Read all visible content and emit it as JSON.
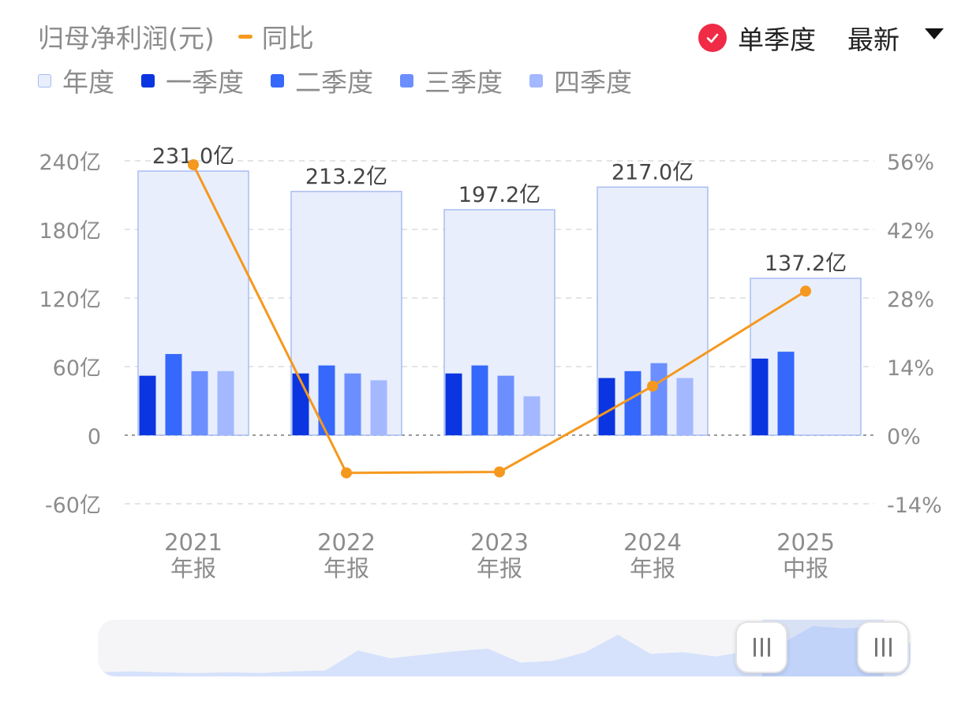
{
  "legend": {
    "title": "归母净利润(元)",
    "line_label": "同比",
    "bar_labels": [
      "年度",
      "一季度",
      "二季度",
      "三季度",
      "四季度"
    ]
  },
  "controls": {
    "single_quarter_label": "单季度",
    "sort_label": "最新"
  },
  "colors": {
    "annual_fill": "#e8eefc",
    "annual_stroke": "#a9bdf2",
    "q1": "#0a35e0",
    "q2": "#3568fb",
    "q3": "#6c8fff",
    "q4": "#a3b8ff",
    "line": "#f5981e",
    "check": "#f02b46",
    "grid": "#dcdcdc",
    "axis_text": "#8c8c8c"
  },
  "chart_data": {
    "type": "bar",
    "categories": [
      [
        "2021",
        "年报"
      ],
      [
        "2022",
        "年报"
      ],
      [
        "2023",
        "年报"
      ],
      [
        "2024",
        "年报"
      ],
      [
        "2025",
        "中报"
      ]
    ],
    "series": [
      {
        "name": "年度",
        "values": [
          231.0,
          213.2,
          197.2,
          217.0,
          137.2
        ]
      },
      {
        "name": "一季度",
        "values": [
          52,
          54,
          54,
          50,
          67
        ]
      },
      {
        "name": "二季度",
        "values": [
          71,
          61,
          61,
          56,
          73
        ]
      },
      {
        "name": "三季度",
        "values": [
          56,
          54,
          52,
          63,
          null
        ]
      },
      {
        "name": "四季度",
        "values": [
          56,
          48,
          34,
          50,
          null
        ]
      }
    ],
    "line_series": {
      "name": "同比",
      "values": [
        55.2,
        -7.7,
        -7.5,
        10.0,
        29.4
      ]
    },
    "data_labels": [
      "231.0亿",
      "213.2亿",
      "197.2亿",
      "217.0亿",
      "137.2亿"
    ],
    "y_left": {
      "ticks": [
        240,
        180,
        120,
        60,
        0,
        -60
      ],
      "labels": [
        "240亿",
        "180亿",
        "120亿",
        "60亿",
        "0",
        "-60亿"
      ],
      "range": [
        -60,
        240
      ]
    },
    "y_right": {
      "ticks": [
        56,
        42,
        28,
        14,
        0,
        -14
      ],
      "labels": [
        "56%",
        "42%",
        "28%",
        "14%",
        "0%",
        "-14%"
      ],
      "range": [
        -14,
        56
      ]
    },
    "grid": true
  },
  "slider": {
    "overview": [
      3,
      4,
      3,
      2,
      3,
      2,
      4,
      5,
      28,
      19,
      23,
      27,
      30,
      14,
      16,
      26,
      46,
      24,
      26,
      21,
      27,
      35,
      56,
      53,
      56,
      36
    ]
  }
}
